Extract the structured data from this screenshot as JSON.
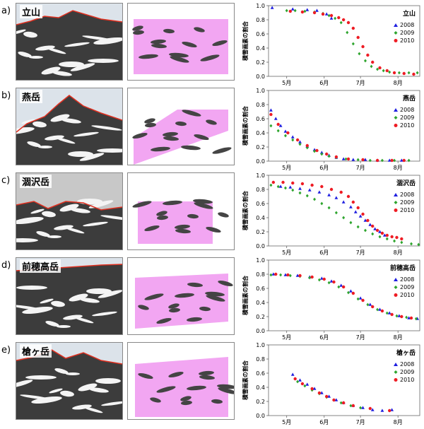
{
  "colors": {
    "y2008": "#1f1fe0",
    "y2009": "#2ea52e",
    "y2010": "#ee1c24",
    "outline": "#e03020",
    "mask": "#f2a6f2"
  },
  "ylabel": "積雪画素の割合",
  "months": [
    "5月",
    "6月",
    "7月",
    "8月"
  ],
  "legend": [
    "2008",
    "2009",
    "2010"
  ],
  "yticks": [
    "0.0",
    "0.2",
    "0.4",
    "0.6",
    "0.8",
    "1.0"
  ],
  "panels": [
    {
      "letter": "a)",
      "name": "立山"
    },
    {
      "letter": "b)",
      "name": "燕岳"
    },
    {
      "letter": "c)",
      "name": "涸沢岳"
    },
    {
      "letter": "d)",
      "name": "前穂高岳"
    },
    {
      "letter": "e)",
      "name": "槍ヶ岳"
    }
  ],
  "chart_data": [
    {
      "type": "scatter",
      "title": "立山",
      "ylabel": "積雪画素の割合",
      "xlim": [
        120,
        245
      ],
      "ylim": [
        0,
        1
      ],
      "x_ticks": {
        "5月": 135,
        "6月": 166,
        "7月": 196,
        "8月": 227
      },
      "series": [
        {
          "name": "2008",
          "x": [
            123,
            140,
            152,
            160,
            168,
            172
          ],
          "y": [
            0.97,
            0.95,
            0.94,
            0.93,
            0.88,
            0.82
          ]
        },
        {
          "name": "2009",
          "x": [
            135,
            142,
            150,
            158,
            165,
            170,
            175,
            180,
            185,
            190,
            195,
            200,
            205,
            210,
            215,
            220,
            228,
            236,
            243
          ],
          "y": [
            0.93,
            0.93,
            0.92,
            0.91,
            0.89,
            0.86,
            0.82,
            0.76,
            0.62,
            0.46,
            0.32,
            0.22,
            0.14,
            0.1,
            0.08,
            0.06,
            0.05,
            0.05,
            0.05
          ]
        },
        {
          "name": "2010",
          "x": [
            138,
            148,
            158,
            165,
            172,
            178,
            182,
            186,
            190,
            194,
            198,
            202,
            206,
            212,
            218,
            224,
            232,
            240
          ],
          "y": [
            0.92,
            0.91,
            0.9,
            0.88,
            0.86,
            0.83,
            0.8,
            0.76,
            0.68,
            0.55,
            0.42,
            0.3,
            0.2,
            0.12,
            0.08,
            0.05,
            0.04,
            0.03
          ]
        }
      ]
    },
    {
      "type": "scatter",
      "title": "燕岳",
      "ylabel": "積雪画素の割合",
      "xlim": [
        120,
        245
      ],
      "ylim": [
        0,
        1
      ],
      "x_ticks": {
        "5月": 135,
        "6月": 166,
        "7月": 196,
        "8月": 227
      },
      "series": [
        {
          "name": "2008",
          "x": [
            122,
            126,
            130,
            134,
            140,
            146,
            152,
            158,
            164,
            170,
            176,
            182,
            190,
            200,
            210,
            220,
            230
          ],
          "y": [
            0.72,
            0.6,
            0.5,
            0.42,
            0.34,
            0.27,
            0.21,
            0.16,
            0.12,
            0.08,
            0.05,
            0.03,
            0.02,
            0.02,
            0.01,
            0.01,
            0.01
          ]
        },
        {
          "name": "2009",
          "x": [
            122,
            128,
            134,
            140,
            146,
            152,
            158,
            164,
            170,
            176,
            184,
            194,
            204,
            214,
            224,
            236
          ],
          "y": [
            0.5,
            0.43,
            0.36,
            0.3,
            0.24,
            0.19,
            0.14,
            0.1,
            0.07,
            0.05,
            0.03,
            0.02,
            0.01,
            0.01,
            0.01,
            0.01
          ]
        },
        {
          "name": "2010",
          "x": [
            122,
            128,
            136,
            144,
            152,
            160,
            168,
            176,
            186,
            198,
            210,
            222,
            232
          ],
          "y": [
            0.66,
            0.52,
            0.4,
            0.3,
            0.22,
            0.15,
            0.1,
            0.06,
            0.03,
            0.02,
            0.01,
            0.01,
            0.01
          ]
        }
      ]
    },
    {
      "type": "scatter",
      "title": "涸沢岳",
      "ylabel": "積雪画素の割合",
      "xlim": [
        120,
        245
      ],
      "ylim": [
        0,
        1
      ],
      "x_ticks": {
        "5月": 135,
        "6月": 166,
        "7月": 196,
        "8月": 227
      },
      "series": [
        {
          "name": "2008",
          "x": [
            130,
            138,
            146,
            154,
            162,
            170,
            176,
            182,
            188,
            192,
            196,
            200,
            204,
            208,
            212,
            216
          ],
          "y": [
            0.84,
            0.83,
            0.81,
            0.79,
            0.76,
            0.72,
            0.68,
            0.62,
            0.55,
            0.48,
            0.42,
            0.36,
            0.3,
            0.24,
            0.2,
            0.15
          ]
        },
        {
          "name": "2009",
          "x": [
            122,
            128,
            134,
            140,
            146,
            152,
            158,
            164,
            170,
            176,
            182,
            188,
            194,
            200,
            206,
            212,
            218,
            224,
            230,
            238,
            244
          ],
          "y": [
            0.86,
            0.84,
            0.82,
            0.79,
            0.75,
            0.71,
            0.66,
            0.6,
            0.54,
            0.47,
            0.4,
            0.33,
            0.27,
            0.22,
            0.17,
            0.13,
            0.1,
            0.07,
            0.05,
            0.03,
            0.02
          ]
        },
        {
          "name": "2010",
          "x": [
            124,
            132,
            140,
            148,
            156,
            164,
            172,
            180,
            186,
            190,
            194,
            198,
            202,
            206,
            210,
            214,
            218,
            222,
            226,
            230
          ],
          "y": [
            0.9,
            0.9,
            0.89,
            0.88,
            0.86,
            0.84,
            0.8,
            0.76,
            0.7,
            0.62,
            0.54,
            0.45,
            0.36,
            0.28,
            0.22,
            0.18,
            0.15,
            0.13,
            0.12,
            0.1
          ]
        }
      ]
    },
    {
      "type": "scatter",
      "title": "前穂高岳",
      "ylabel": "積雪画素の割合",
      "xlim": [
        120,
        245
      ],
      "ylim": [
        0,
        1
      ],
      "x_ticks": {
        "5月": 135,
        "6月": 166,
        "7月": 196,
        "8月": 227
      },
      "series": [
        {
          "name": "2008",
          "x": [
            124,
            134,
            144,
            154,
            164,
            172,
            180,
            188,
            196,
            204,
            212,
            220,
            228,
            236,
            243
          ],
          "y": [
            0.8,
            0.79,
            0.78,
            0.76,
            0.74,
            0.7,
            0.64,
            0.56,
            0.46,
            0.37,
            0.3,
            0.25,
            0.21,
            0.18,
            0.17
          ]
        },
        {
          "name": "2009",
          "x": [
            122,
            130,
            138,
            146,
            154,
            162,
            170,
            178,
            186,
            194,
            202,
            210,
            218,
            226,
            234,
            242
          ],
          "y": [
            0.79,
            0.79,
            0.78,
            0.77,
            0.75,
            0.72,
            0.68,
            0.62,
            0.54,
            0.45,
            0.37,
            0.3,
            0.25,
            0.21,
            0.19,
            0.17
          ]
        },
        {
          "name": "2010",
          "x": [
            126,
            136,
            146,
            156,
            166,
            174,
            182,
            190,
            198,
            206,
            214,
            222,
            230,
            238
          ],
          "y": [
            0.8,
            0.79,
            0.78,
            0.76,
            0.73,
            0.69,
            0.62,
            0.53,
            0.43,
            0.34,
            0.28,
            0.23,
            0.2,
            0.18
          ]
        }
      ]
    },
    {
      "type": "scatter",
      "title": "槍ヶ岳",
      "ylabel": "積雪画素の割合",
      "xlim": [
        120,
        245
      ],
      "ylim": [
        0,
        1
      ],
      "x_ticks": {
        "5月": 135,
        "6月": 166,
        "7月": 196,
        "8月": 227
      },
      "series": [
        {
          "name": "2008",
          "x": [
            140,
            146,
            152,
            158,
            164,
            170,
            176,
            182,
            190,
            198,
            206,
            214,
            222
          ],
          "y": [
            0.58,
            0.5,
            0.44,
            0.38,
            0.32,
            0.27,
            0.22,
            0.18,
            0.14,
            0.11,
            0.08,
            0.07,
            0.08
          ]
        },
        {
          "name": "2009",
          "x": [
            144,
            150,
            156,
            162,
            168,
            174,
            180,
            188,
            196
          ],
          "y": [
            0.48,
            0.42,
            0.36,
            0.31,
            0.26,
            0.22,
            0.18,
            0.14,
            0.11
          ]
        },
        {
          "name": "2010",
          "x": [
            142,
            148,
            156,
            162,
            168,
            174,
            182,
            190,
            204,
            220
          ],
          "y": [
            0.52,
            0.45,
            0.38,
            0.32,
            0.27,
            0.22,
            0.18,
            0.14,
            0.1,
            0.07
          ]
        }
      ]
    }
  ]
}
